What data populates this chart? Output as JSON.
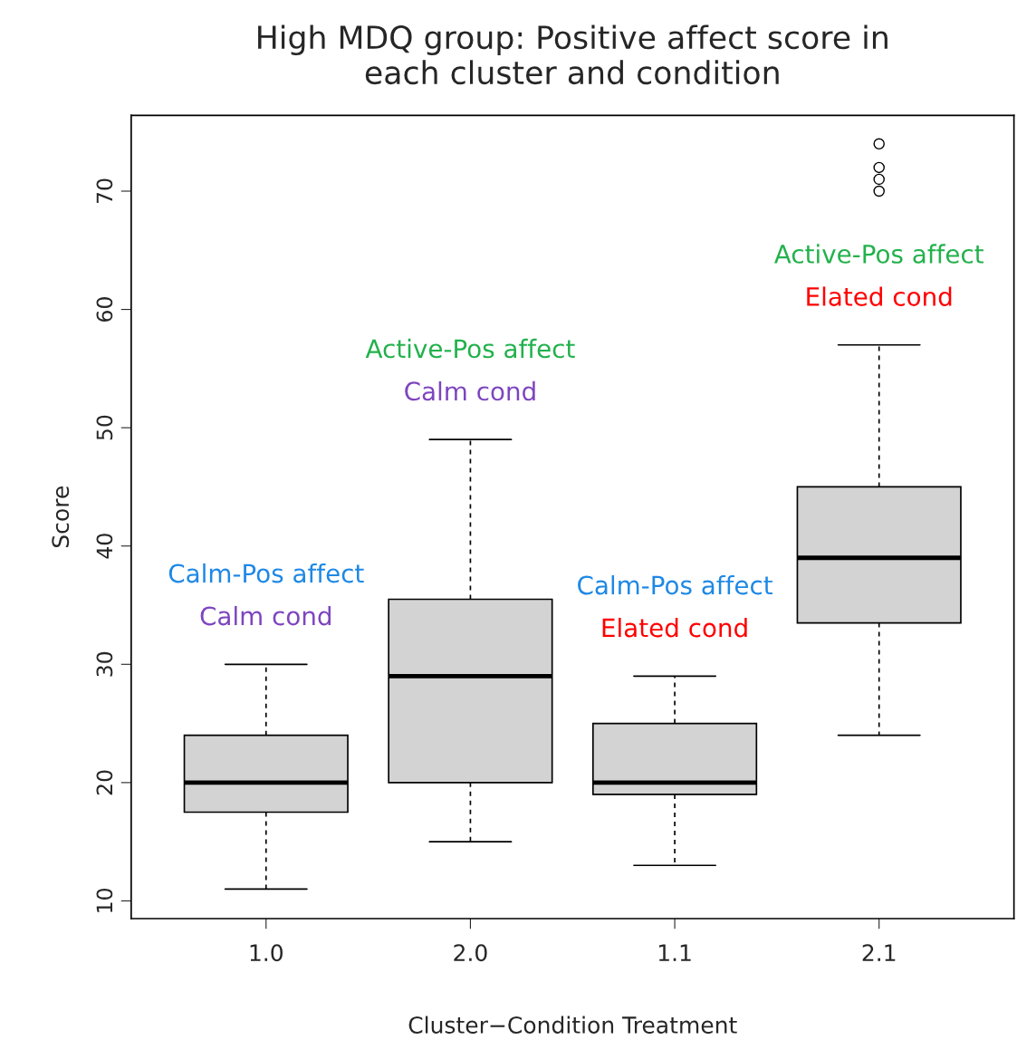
{
  "chart_data": {
    "type": "box",
    "title": "High MDQ group: Positive affect score in\neach cluster and condition",
    "xlabel": "Cluster−Condition Treatment",
    "ylabel": "Score",
    "categories": [
      "1.0",
      "2.0",
      "1.1",
      "2.1"
    ],
    "boxes": [
      {
        "low": 11,
        "q1": 17.5,
        "median": 20,
        "q3": 24,
        "high": 30
      },
      {
        "low": 15,
        "q1": 20,
        "median": 29,
        "q3": 35.5,
        "high": 49
      },
      {
        "low": 13,
        "q1": 19,
        "median": 20,
        "q3": 25,
        "high": 29
      },
      {
        "low": 24,
        "q1": 33.5,
        "median": 39,
        "q3": 45,
        "high": 57,
        "outliers": [
          70,
          71,
          72,
          74
        ]
      }
    ],
    "color": "#d3d3d3",
    "ylim": [
      8.5,
      76.4
    ],
    "yticks": [
      10,
      20,
      30,
      40,
      50,
      60,
      70
    ],
    "grid": false,
    "legend": false,
    "annotations": [
      "Calm-Pos affect",
      "Calm cond",
      "Active-Pos affect",
      "Calm cond",
      "Calm-Pos affect",
      "Elated cond",
      "Active-Pos affect",
      "Elated cond"
    ]
  }
}
